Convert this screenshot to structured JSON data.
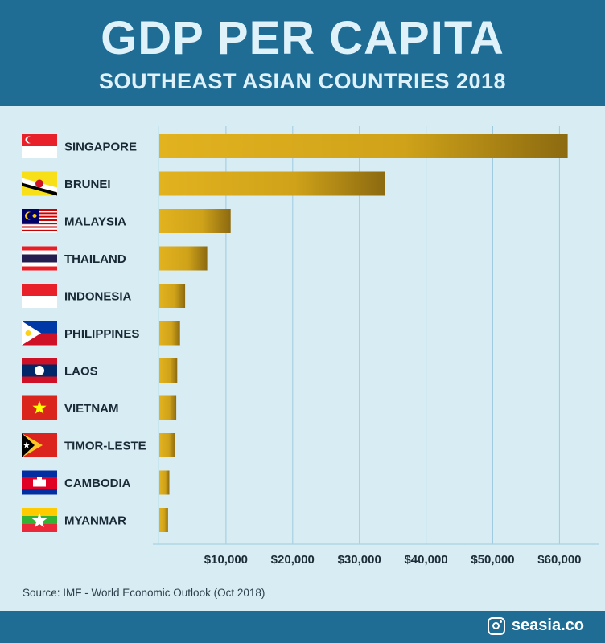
{
  "header": {
    "title": "GDP PER CAPITA",
    "subtitle": "SOUTHEAST ASIAN COUNTRIES 2018"
  },
  "source": "Source: IMF - World Economic Outlook (Oct 2018)",
  "brand": {
    "icon": "instagram-icon",
    "handle": "seasia.co"
  },
  "colors": {
    "header_bg": "#1f6c95",
    "panel_bg": "#d7ecf3",
    "bar": "#d4a418",
    "grid": "#9fcbe0"
  },
  "chart_data": {
    "type": "bar",
    "orientation": "horizontal",
    "title": "GDP PER CAPITA",
    "subtitle": "SOUTHEAST ASIAN COUNTRIES 2018",
    "categories": [
      "SINGAPORE",
      "BRUNEI",
      "MALAYSIA",
      "THAILAND",
      "INDONESIA",
      "PHILIPPINES",
      "LAOS",
      "VIETNAM",
      "TIMOR-LESTE",
      "CAMBODIA",
      "MYANMAR"
    ],
    "values": [
      61230,
      33820,
      10700,
      7190,
      3870,
      3100,
      2690,
      2550,
      2400,
      1510,
      1300
    ],
    "flags": [
      "singapore-flag-icon",
      "brunei-flag-icon",
      "malaysia-flag-icon",
      "thailand-flag-icon",
      "indonesia-flag-icon",
      "philippines-flag-icon",
      "laos-flag-icon",
      "vietnam-flag-icon",
      "timor-leste-flag-icon",
      "cambodia-flag-icon",
      "myanmar-flag-icon"
    ],
    "xticks": [
      10000,
      20000,
      30000,
      40000,
      50000,
      60000
    ],
    "xtick_labels": [
      "$10,000",
      "$20,000",
      "$30,000",
      "$40,000",
      "$50,000",
      "$60,000"
    ],
    "xlim": [
      0,
      66000
    ],
    "grid": "vertical"
  }
}
